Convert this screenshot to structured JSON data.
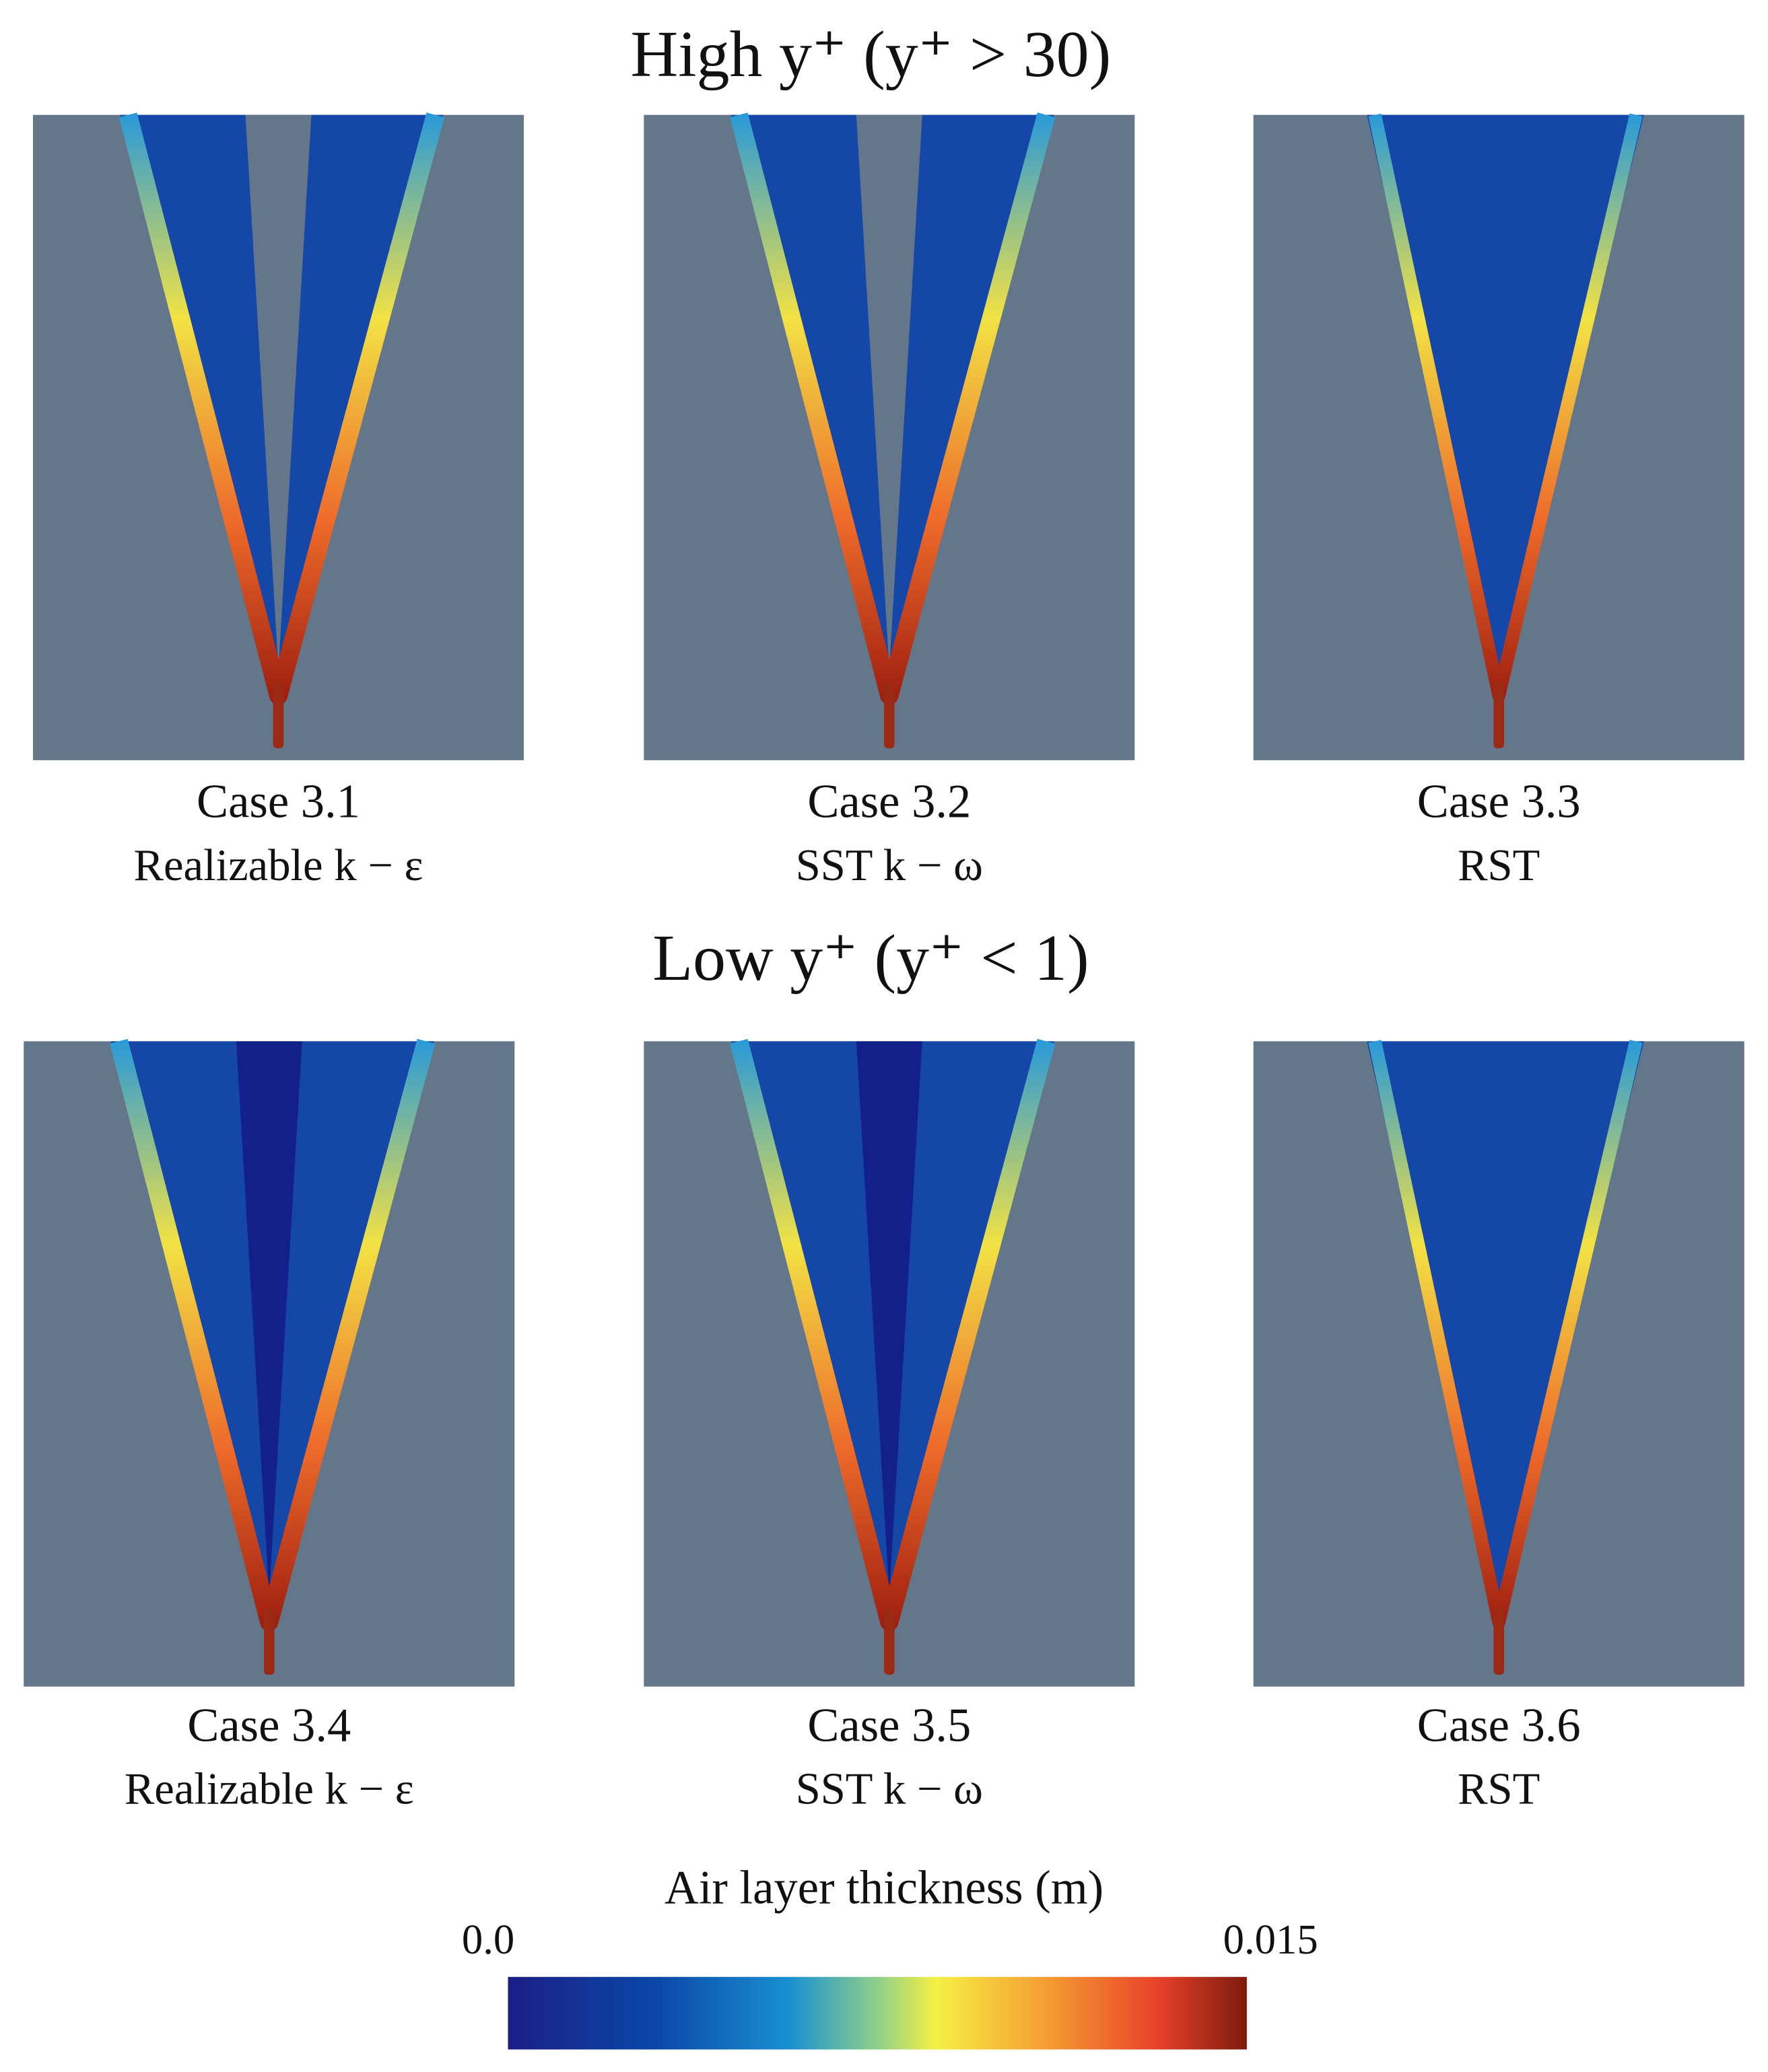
{
  "sections": [
    {
      "title": "High y⁺ (y⁺ > 30)",
      "panels": [
        {
          "case": "Case 3.1",
          "model": "Realizable k − ε"
        },
        {
          "case": "Case 3.2",
          "model": "SST k − ω"
        },
        {
          "case": "Case 3.3",
          "model": "RST"
        }
      ]
    },
    {
      "title": "Low y⁺ (y⁺ < 1)",
      "panels": [
        {
          "case": "Case 3.4",
          "model": "Realizable k − ε"
        },
        {
          "case": "Case 3.5",
          "model": "SST k − ω"
        },
        {
          "case": "Case 3.6",
          "model": "RST"
        }
      ]
    }
  ],
  "colorbar": {
    "title": "Air layer thickness (m)",
    "range": [
      0,
      0.015
    ],
    "ticks": [
      {
        "value": 0,
        "label": "0.0"
      },
      0.015
    ]
  }
}
